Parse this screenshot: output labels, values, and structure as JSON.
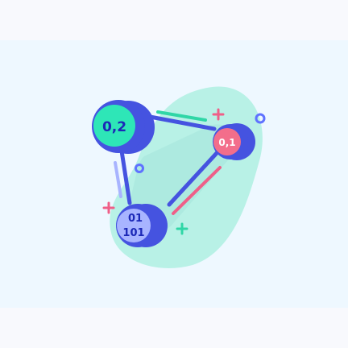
{
  "illustration": {
    "nodes": [
      {
        "label": "0,2",
        "color": "#2ee6b7"
      },
      {
        "label": "0,1",
        "color": "#f36e8b"
      },
      {
        "label_top": "01",
        "label_bottom": "101",
        "color": "#a8b4ff"
      }
    ],
    "colors": {
      "background": "#f8f9fd",
      "panel": "#eef8ff",
      "blob_outer": "#b8f1e6",
      "blob_inner": "#a9e7dd",
      "edge": "#4553e0",
      "edge_dark": "#2f37b8",
      "accent_pink": "#ef5f88",
      "accent_mint": "#2fd6a6",
      "accent_blue": "#5f72ff"
    }
  }
}
